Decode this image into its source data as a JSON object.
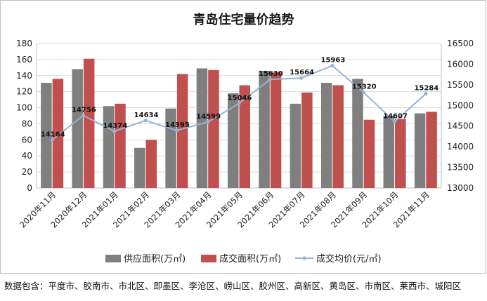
{
  "title": "青岛住宅量价趋势",
  "note": "数据包含：平度市、胶南市、市北区、即墨区、李沧区、崂山区、胶州区、高新区、黄岛区、市南区、莱西市、城阳区",
  "chart_data": {
    "type": "bar",
    "title": "青岛住宅量价趋势",
    "categories": [
      "2020年11月",
      "2020年12月",
      "2021年01月",
      "2021年02月",
      "2021年03月",
      "2021年04月",
      "2021年05月",
      "2021年06月",
      "2021年07月",
      "2021年08月",
      "2021年09月",
      "2021年10月",
      "2021年11月"
    ],
    "series": [
      {
        "name": "供应面积(万㎡)",
        "type": "bar",
        "axis": "left",
        "color": "#7f7f7f",
        "values": [
          131,
          148,
          102,
          50,
          99,
          149,
          118,
          146,
          105,
          131,
          136,
          90,
          93
        ]
      },
      {
        "name": "成交面积(万㎡)",
        "type": "bar",
        "axis": "left",
        "color": "#c0504d",
        "values": [
          136,
          161,
          105,
          60,
          142,
          147,
          128,
          144,
          119,
          128,
          85,
          86,
          95
        ]
      },
      {
        "name": "成交均价(元/㎡)",
        "type": "line",
        "axis": "right",
        "color": "#95b3d7",
        "values": [
          14164,
          14756,
          14374,
          14634,
          14395,
          14599,
          15046,
          15630,
          15664,
          15963,
          15320,
          14607,
          15284
        ]
      }
    ],
    "y_left": {
      "min": 0,
      "max": 180,
      "step": 20,
      "ticks": [
        "0",
        "20",
        "40",
        "60",
        "80",
        "100",
        "120",
        "140",
        "160",
        "180"
      ]
    },
    "y_right": {
      "min": 13000,
      "max": 16500,
      "step": 500,
      "ticks": [
        "13000",
        "13500",
        "14000",
        "14500",
        "15000",
        "15500",
        "16000",
        "16500"
      ]
    },
    "legend_position": "bottom",
    "grid": "horizontal"
  }
}
